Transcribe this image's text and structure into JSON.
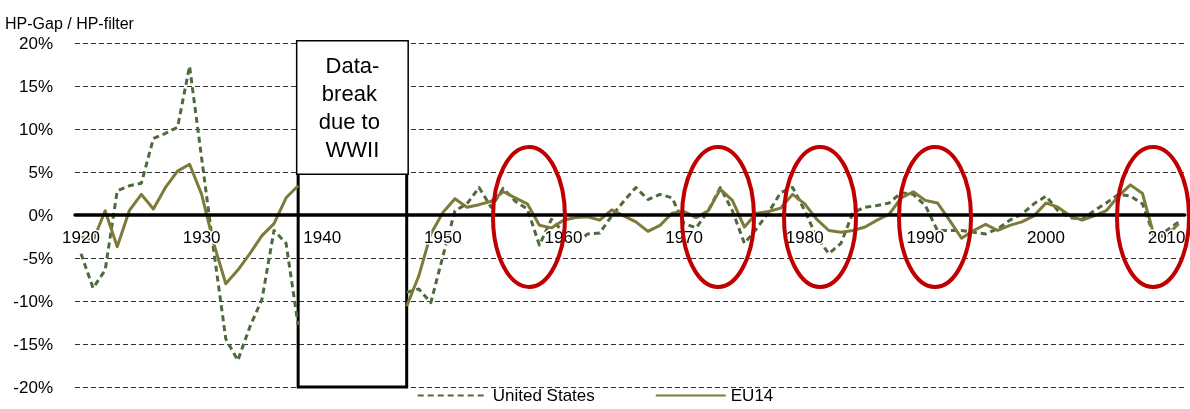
{
  "chart_data": {
    "type": "line",
    "ylabel": "HP-Gap / HP-filter",
    "x": [
      1920,
      1921,
      1922,
      1923,
      1924,
      1925,
      1926,
      1927,
      1928,
      1929,
      1930,
      1931,
      1932,
      1933,
      1934,
      1935,
      1936,
      1937,
      1938,
      null,
      1947,
      1948,
      1949,
      1950,
      1951,
      1952,
      1953,
      1954,
      1955,
      1956,
      1957,
      1958,
      1959,
      1960,
      1961,
      1962,
      1963,
      1964,
      1965,
      1966,
      1967,
      1968,
      1969,
      1970,
      1971,
      1972,
      1973,
      1974,
      1975,
      1976,
      1977,
      1978,
      1979,
      1980,
      1981,
      1982,
      1983,
      1984,
      1985,
      1986,
      1987,
      1988,
      1989,
      1990,
      1991,
      1992,
      1993,
      1994,
      1995,
      1996,
      1997,
      1998,
      1999,
      2000,
      2001,
      2002,
      2003,
      2004,
      2005,
      2006,
      2007,
      2008,
      2009,
      2010,
      2011
    ],
    "series": [
      {
        "name": "United States",
        "color": "#4f6b3c",
        "line_style": "dashed",
        "values": [
          -4.5,
          -8.5,
          -6.4,
          2.8,
          3.4,
          3.7,
          8.9,
          9.5,
          10.2,
          17.3,
          6.6,
          -4.1,
          -14.4,
          -16.9,
          -13,
          -9.8,
          -1.8,
          -3.3,
          -12.8,
          null,
          -9.0,
          -8.6,
          -10.2,
          -4.8,
          0.5,
          1.3,
          3.2,
          0.9,
          3.1,
          1.6,
          0.7,
          -3.5,
          -0.5,
          -2.0,
          -3.3,
          -2.2,
          -2.1,
          -0.1,
          1.6,
          3.2,
          1.8,
          2.4,
          2.0,
          -1.0,
          -1.5,
          0.5,
          3.2,
          0.5,
          -3.3,
          -1.6,
          0.3,
          2.6,
          3.2,
          0.5,
          -2.6,
          -4.5,
          -3.3,
          0.3,
          0.9,
          1.1,
          1.4,
          2.6,
          2.4,
          1.1,
          -1.8,
          -1.8,
          -1.8,
          -2.0,
          -2.2,
          -1.6,
          -0.6,
          0.1,
          1.3,
          2.2,
          0.5,
          -0.3,
          -0.5,
          0.5,
          1.4,
          2.4,
          2.2,
          1.3,
          -2.6,
          -1.8,
          -0.8
        ]
      },
      {
        "name": "EU14",
        "color": "#7d7a3a",
        "line_style": "solid",
        "values": [
          -2.5,
          -3.0,
          0.5,
          -3.7,
          0.5,
          2.4,
          0.7,
          3.2,
          5.1,
          5.9,
          2.4,
          -3.3,
          -8.0,
          -6.4,
          -4.5,
          -2.4,
          -1.0,
          2.0,
          3.4,
          null,
          -10.6,
          -7.1,
          -2.2,
          0.3,
          1.9,
          0.9,
          1.2,
          1.6,
          2.7,
          2.0,
          1.3,
          -1.2,
          -1.5,
          -0.6,
          -0.3,
          -0.2,
          -0.6,
          0.6,
          -0.1,
          -0.8,
          -1.9,
          -1.2,
          0.2,
          0.4,
          -0.3,
          0.5,
          3.0,
          1.7,
          -1.4,
          0.2,
          0.4,
          0.8,
          2.4,
          1.3,
          -0.5,
          -1.8,
          -2.0,
          -1.8,
          -1.4,
          -0.6,
          0.1,
          2.0,
          2.7,
          1.7,
          1.4,
          -0.6,
          -2.7,
          -1.8,
          -1.1,
          -1.8,
          -1.2,
          -0.8,
          -0.1,
          1.4,
          0.9,
          -0.1,
          -0.6,
          -0.1,
          0.5,
          2.2,
          3.5,
          2.5,
          -2.6,
          -2.4,
          -1.0
        ]
      }
    ],
    "xlim": [
      1919.5,
      2011.5
    ],
    "xticks": [
      1920,
      1930,
      1940,
      1950,
      1960,
      1970,
      1980,
      1990,
      2000,
      2010
    ],
    "ylim": [
      -20,
      20
    ],
    "yticks": [
      {
        "value": -20,
        "label": "-20%"
      },
      {
        "value": -15,
        "label": "-15%"
      },
      {
        "value": -10,
        "label": "-10%"
      },
      {
        "value": -5,
        "label": "-5%"
      },
      {
        "value": 0,
        "label": "0%"
      },
      {
        "value": 5,
        "label": "5%"
      },
      {
        "value": 10,
        "label": "10%"
      },
      {
        "value": 15,
        "label": "15%"
      },
      {
        "value": 20,
        "label": "20%"
      }
    ],
    "grid": "y",
    "legend": "bottom",
    "marker": "none",
    "bands": [
      {
        "axis": "x",
        "from": 1938,
        "to": 1947,
        "label": "Data-break due to WWII"
      }
    ]
  }
}
